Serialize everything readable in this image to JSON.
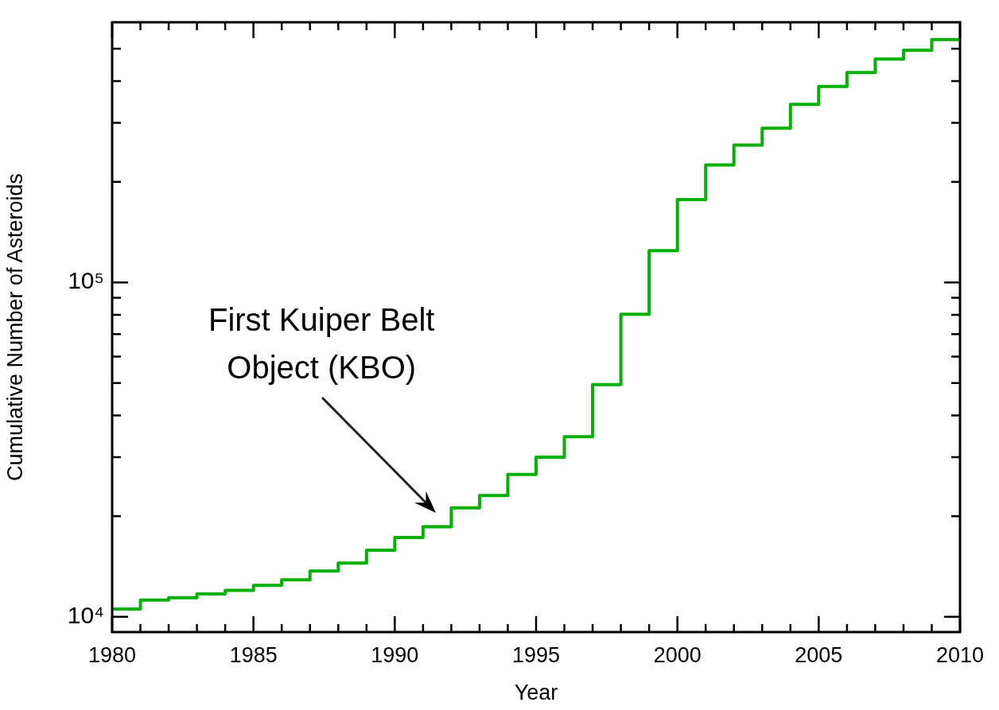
{
  "chart_data": {
    "type": "step",
    "xlabel": "Year",
    "ylabel": "Cumulative Number of Asteroids",
    "x": [
      1980,
      1981,
      1982,
      1983,
      1984,
      1985,
      1986,
      1987,
      1988,
      1989,
      1990,
      1991,
      1992,
      1993,
      1994,
      1995,
      1996,
      1997,
      1998,
      1999,
      2000,
      2001,
      2002,
      2003,
      2004,
      2005,
      2006,
      2007,
      2008,
      2009
    ],
    "series": [
      {
        "color": "#00b000",
        "values": [
          10550,
          11220,
          11400,
          11710,
          12000,
          12410,
          12900,
          13710,
          14470,
          15810,
          17270,
          18600,
          21170,
          23050,
          26650,
          30020,
          34580,
          49500,
          80300,
          124400,
          177000,
          224400,
          257600,
          289200,
          341000,
          385500,
          424600,
          465600,
          494900,
          532600
        ]
      }
    ],
    "log": "y",
    "xlim": [
      1980,
      2010
    ],
    "ylim": [
      9000,
      600000
    ],
    "xticks": [
      1980,
      {
        "value": 1981,
        "label": null
      },
      {
        "value": 1982,
        "label": null
      },
      {
        "value": 1983,
        "label": null
      },
      {
        "value": 1984,
        "label": null
      },
      1985,
      {
        "value": 1986,
        "label": null
      },
      {
        "value": 1987,
        "label": null
      },
      {
        "value": 1988,
        "label": null
      },
      {
        "value": 1989,
        "label": null
      },
      1990,
      {
        "value": 1991,
        "label": null
      },
      {
        "value": 1992,
        "label": null
      },
      {
        "value": 1993,
        "label": null
      },
      {
        "value": 1994,
        "label": null
      },
      1995,
      {
        "value": 1996,
        "label": null
      },
      {
        "value": 1997,
        "label": null
      },
      {
        "value": 1998,
        "label": null
      },
      {
        "value": 1999,
        "label": null
      },
      2000,
      {
        "value": 2001,
        "label": null
      },
      {
        "value": 2002,
        "label": null
      },
      {
        "value": 2003,
        "label": null
      },
      {
        "value": 2004,
        "label": null
      },
      2005,
      {
        "value": 2006,
        "label": null
      },
      {
        "value": 2007,
        "label": null
      },
      {
        "value": 2008,
        "label": null
      },
      {
        "value": 2009,
        "label": null
      },
      2010
    ],
    "yticks": [
      {
        "value": 10000,
        "label": "10⁴"
      },
      {
        "value": 20000,
        "label": null
      },
      {
        "value": 30000,
        "label": null
      },
      {
        "value": 40000,
        "label": null
      },
      {
        "value": 50000,
        "label": null
      },
      {
        "value": 60000,
        "label": null
      },
      {
        "value": 70000,
        "label": null
      },
      {
        "value": 80000,
        "label": null
      },
      {
        "value": 90000,
        "label": null
      },
      {
        "value": 100000,
        "label": "10⁵"
      },
      {
        "value": 200000,
        "label": null
      },
      {
        "value": 300000,
        "label": null
      },
      {
        "value": 400000,
        "label": null
      },
      {
        "value": 500000,
        "label": null
      }
    ],
    "grid": false,
    "legend": false,
    "line_style": "solid",
    "marker": "none",
    "annotations": [
      "First Kuiper Belt Object (KBO)"
    ]
  }
}
